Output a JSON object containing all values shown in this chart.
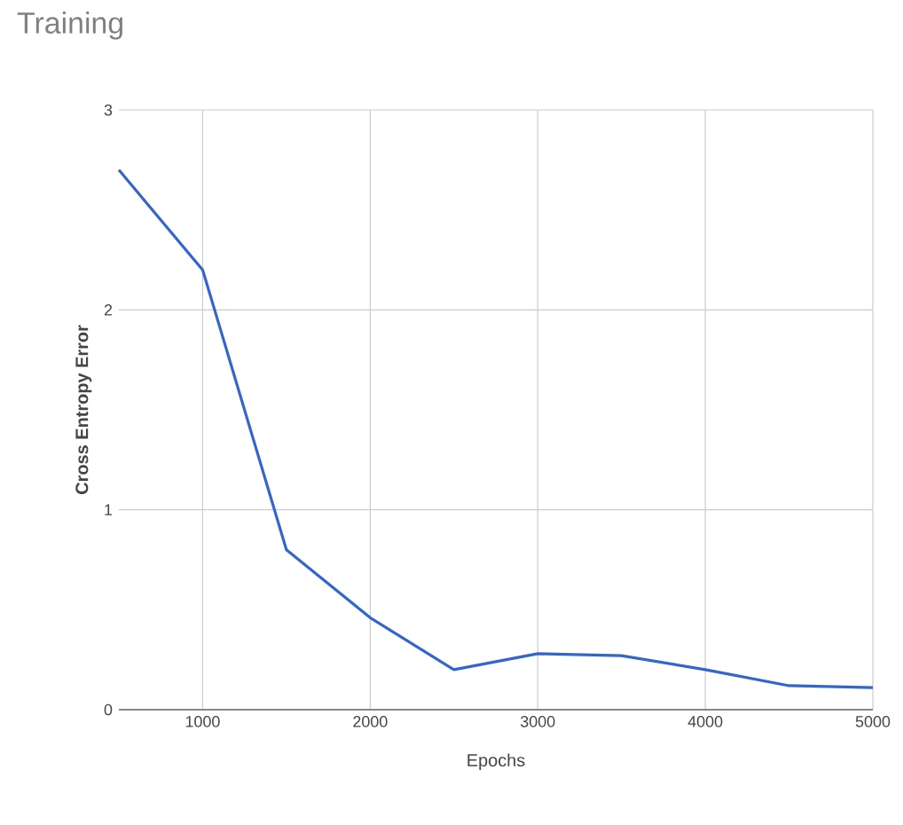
{
  "chart_data": {
    "type": "line",
    "title": "Training",
    "xlabel": "Epochs",
    "ylabel": "Cross Entropy Error",
    "x": [
      500,
      1000,
      1500,
      2000,
      2500,
      3000,
      3500,
      4000,
      4500,
      5000
    ],
    "series": [
      {
        "color": "#3366cc",
        "values": [
          2.7,
          2.2,
          0.8,
          0.46,
          0.2,
          0.28,
          0.27,
          0.2,
          0.12,
          0.11
        ]
      }
    ],
    "xlim": [
      500,
      5000
    ],
    "xticks": [
      1000,
      2000,
      3000,
      4000,
      5000
    ],
    "ylim": [
      0,
      3
    ],
    "yticks": [
      0,
      1,
      2,
      3
    ],
    "grid": true,
    "marker": "none",
    "line_style": "solid"
  }
}
